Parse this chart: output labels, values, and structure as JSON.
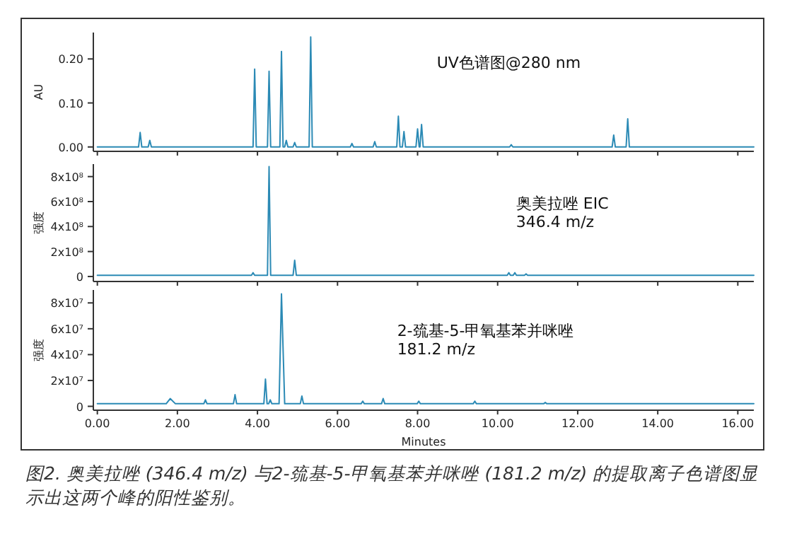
{
  "chart_data": [
    {
      "type": "line",
      "ylabel": "AU",
      "xlim": [
        -0.1,
        16.4
      ],
      "ylim": [
        -0.01,
        0.26
      ],
      "xticks": [
        {
          "value": 0,
          "label": null
        },
        {
          "value": 2,
          "label": null
        },
        {
          "value": 4,
          "label": null
        },
        {
          "value": 6,
          "label": null
        },
        {
          "value": 8,
          "label": null
        },
        {
          "value": 10,
          "label": null
        },
        {
          "value": 12,
          "label": null
        },
        {
          "value": 14,
          "label": null
        },
        {
          "value": 16,
          "label": null
        }
      ],
      "yticks": [
        {
          "value": 0,
          "label": "0.00"
        },
        {
          "value": 0.1,
          "label": "0.10"
        },
        {
          "value": 0.2,
          "label": "0.20"
        }
      ],
      "tick_labels": "y",
      "annotations": [
        "UV色谱图@280 nm"
      ],
      "series": [
        {
          "color": "#2b8ab5",
          "x": [
            0,
            1.03,
            1.07,
            1.11,
            1.27,
            1.31,
            1.35,
            3.89,
            3.93,
            3.97,
            4.25,
            4.29,
            4.33,
            4.56,
            4.6,
            4.64,
            4.68,
            4.72,
            4.76,
            4.89,
            4.93,
            4.97,
            5.29,
            5.33,
            5.37,
            6.32,
            6.36,
            6.4,
            6.89,
            6.93,
            6.97,
            7.48,
            7.52,
            7.56,
            7.62,
            7.66,
            7.7,
            7.96,
            8.0,
            8.04,
            8.06,
            8.1,
            8.14,
            10.3,
            10.34,
            10.38,
            12.86,
            12.9,
            12.94,
            13.21,
            13.25,
            13.29,
            16.4
          ],
          "values": [
            0,
            0,
            0.033,
            0,
            0,
            0.015,
            0,
            0,
            0.177,
            0,
            0,
            0.172,
            0,
            0,
            0.217,
            0,
            0,
            0.015,
            0,
            0,
            0.01,
            0,
            0,
            0.25,
            0,
            0,
            0.008,
            0,
            0,
            0.012,
            0,
            0,
            0.07,
            0,
            0,
            0.035,
            0,
            0,
            0.041,
            0,
            0,
            0.051,
            0,
            0,
            0.005,
            0,
            0,
            0.027,
            0,
            0,
            0.064,
            0,
            0
          ]
        }
      ]
    },
    {
      "type": "line",
      "ylabel": "强度",
      "xlim": [
        -0.1,
        16.4
      ],
      "ylim": [
        -40000000,
        900000000
      ],
      "xticks": [
        {
          "value": 0,
          "label": null
        },
        {
          "value": 2,
          "label": null
        },
        {
          "value": 4,
          "label": null
        },
        {
          "value": 6,
          "label": null
        },
        {
          "value": 8,
          "label": null
        },
        {
          "value": 10,
          "label": null
        },
        {
          "value": 12,
          "label": null
        },
        {
          "value": 14,
          "label": null
        },
        {
          "value": 16,
          "label": null
        }
      ],
      "yticks": [
        0,
        {
          "value": 200000000,
          "label": "2x10⁸"
        },
        {
          "value": 400000000,
          "label": "4x10⁸"
        },
        {
          "value": 600000000,
          "label": "6x10⁸"
        },
        {
          "value": 800000000,
          "label": "8x10⁸"
        }
      ],
      "tick_labels": "y",
      "annotations": [
        "奥美拉唑 EIC",
        "346.4 m/z"
      ],
      "series": [
        {
          "color": "#2b8ab5",
          "x": [
            0,
            3.85,
            3.89,
            3.93,
            4.25,
            4.29,
            4.33,
            4.89,
            4.93,
            4.97,
            10.24,
            10.28,
            10.32,
            10.39,
            10.43,
            10.47,
            10.67,
            10.71,
            10.75,
            16.4
          ],
          "values": [
            10000000,
            10000000,
            30000000,
            10000000,
            10000000,
            880000000,
            10000000,
            10000000,
            130000000,
            10000000,
            10000000,
            30000000,
            10000000,
            10000000,
            30000000,
            10000000,
            10000000,
            20000000,
            10000000,
            10000000
          ]
        }
      ]
    },
    {
      "type": "line",
      "ylabel": "强度",
      "xlabel": "Minutes",
      "xlim": [
        -0.1,
        16.4
      ],
      "ylim": [
        -3000000,
        90000000
      ],
      "xticks": [
        {
          "value": 0,
          "label": "0.00"
        },
        {
          "value": 2,
          "label": "2.00"
        },
        {
          "value": 4,
          "label": "4.00"
        },
        {
          "value": 6,
          "label": "6.00"
        },
        {
          "value": 8,
          "label": "8.00"
        },
        {
          "value": 10,
          "label": "10.00"
        },
        {
          "value": 12,
          "label": "12.00"
        },
        {
          "value": 14,
          "label": "14.00"
        },
        {
          "value": 16,
          "label": "16.00"
        }
      ],
      "yticks": [
        0,
        {
          "value": 20000000,
          "label": "2x10⁷"
        },
        {
          "value": 40000000,
          "label": "4x10⁷"
        },
        {
          "value": 60000000,
          "label": "6x10⁷"
        },
        {
          "value": 80000000,
          "label": "8x10⁷"
        }
      ],
      "annotations": [
        "2-巯基-5-甲氧基苯并咪唑",
        "181.2 m/z"
      ],
      "series": [
        {
          "color": "#2b8ab5",
          "x": [
            0,
            1.72,
            1.82,
            1.95,
            2.66,
            2.7,
            2.74,
            3.4,
            3.44,
            3.48,
            4.16,
            4.2,
            4.24,
            4.28,
            4.32,
            4.36,
            4.54,
            4.6,
            4.68,
            5.07,
            5.11,
            5.15,
            6.59,
            6.63,
            6.67,
            7.1,
            7.14,
            7.18,
            7.99,
            8.03,
            8.07,
            9.39,
            9.43,
            9.47,
            11.15,
            11.19,
            11.23,
            16.4
          ],
          "values": [
            2000000,
            2000000,
            6000000,
            2000000,
            2000000,
            5000000,
            2000000,
            2000000,
            9000000,
            2000000,
            2000000,
            21000000,
            2000000,
            2000000,
            5000000,
            2000000,
            2000000,
            87000000,
            2000000,
            2000000,
            8000000,
            2000000,
            2000000,
            4000000,
            2000000,
            2000000,
            6000000,
            2000000,
            2000000,
            4000000,
            2000000,
            2000000,
            4000000,
            2000000,
            2000000,
            3000000,
            2000000,
            2000000
          ]
        }
      ]
    },
    {
      "type": "other",
      "annotations": [
        "图2. 奥美拉唑 (346.4 m/z) 与2-巯基-5-甲氧基苯并咪唑 (181.2 m/z) 的提取离子色谱图显示出这两个峰的阳性鉴别。"
      ]
    }
  ]
}
